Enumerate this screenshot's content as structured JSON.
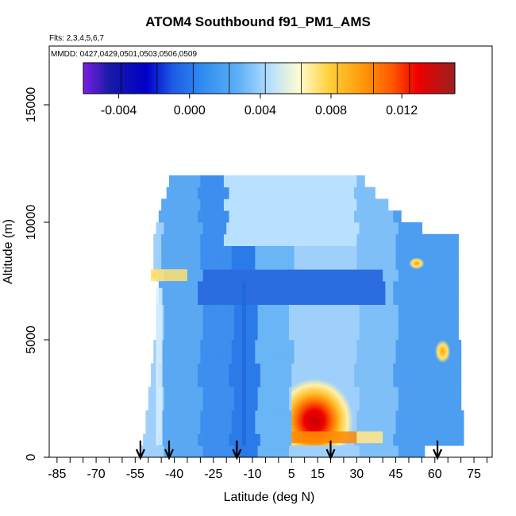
{
  "chart_data": {
    "type": "heatmap",
    "title": "ATOM4 Southbound f91_PM1_AMS",
    "flights_note": "Flts: 2,3,4,5,6,7",
    "dates_note": "MMDD: 0427,0429,0501,0503,0506,0509",
    "xlabel": "Latitude (deg N)",
    "ylabel": "Altitude (m)",
    "xlim": [
      -88,
      82
    ],
    "ylim": [
      0,
      17500
    ],
    "xticks": [
      -85,
      -70,
      -55,
      -40,
      -25,
      -10,
      5,
      15,
      30,
      45,
      60,
      75
    ],
    "xtick_labels": [
      "-85",
      "-70",
      "-55",
      "-40",
      "-25",
      "-10",
      "5",
      "15",
      "30",
      "45",
      "60",
      "75"
    ],
    "yticks": [
      0,
      5000,
      10000,
      15000
    ],
    "ytick_labels": [
      "0",
      "5000",
      "10000",
      "15000"
    ],
    "colorbar": {
      "range": [
        -0.006,
        0.015
      ],
      "ticks": [
        -0.004,
        0.0,
        0.004,
        0.008,
        0.012
      ],
      "tick_labels": [
        "-0.004",
        "0.000",
        "0.004",
        "0.008",
        "0.012"
      ],
      "colors": [
        "#7a1fe6",
        "#1a1aa6",
        "#0000c8",
        "#1e5ae6",
        "#2f8cf0",
        "#5fb2f5",
        "#b4deff",
        "#fffbd2",
        "#ffd23c",
        "#ff9a0a",
        "#ff5a00",
        "#ee0000",
        "#c80000",
        "#9b2020"
      ]
    },
    "arrow_latitudes": [
      -53,
      -42,
      -16,
      20,
      61
    ],
    "profile": {
      "altitude_bins_m": [
        250,
        750,
        1250,
        1750,
        2250,
        2750,
        3250,
        3750,
        4250,
        4750,
        5250,
        5750,
        6250,
        6750,
        7250,
        7750,
        8250,
        8750,
        9250,
        9750,
        10250,
        10750,
        11250,
        11750
      ],
      "latitude_extent_by_bin": [
        [
          -53,
          56
        ],
        [
          -52,
          71
        ],
        [
          -51,
          71
        ],
        [
          -51,
          71
        ],
        [
          -50,
          70
        ],
        [
          -50,
          70
        ],
        [
          -49,
          70
        ],
        [
          -49,
          70
        ],
        [
          -48,
          70
        ],
        [
          -48,
          70
        ],
        [
          -47,
          69
        ],
        [
          -47,
          69
        ],
        [
          -47,
          69
        ],
        [
          -46,
          69
        ],
        [
          -46,
          69
        ],
        [
          -47,
          69
        ],
        [
          -48,
          69
        ],
        [
          -48,
          69
        ],
        [
          -48,
          69
        ],
        [
          -47,
          55
        ],
        [
          -46,
          47
        ],
        [
          -45,
          42
        ],
        [
          -43,
          37
        ],
        [
          -42,
          33
        ]
      ],
      "features": [
        {
          "lat_range": [
            5,
            30
          ],
          "alt_range": [
            500,
            3500
          ],
          "value": 0.013
        },
        {
          "lat_range": [
            -49,
            -46
          ],
          "alt_range": [
            7500,
            8000
          ],
          "value": 0.009
        },
        {
          "lat_range": [
            50,
            56
          ],
          "alt_range": [
            8000,
            8500
          ],
          "value": 0.011
        },
        {
          "lat_range": [
            60,
            66
          ],
          "alt_range": [
            4000,
            5000
          ],
          "value": 0.009
        }
      ]
    }
  }
}
